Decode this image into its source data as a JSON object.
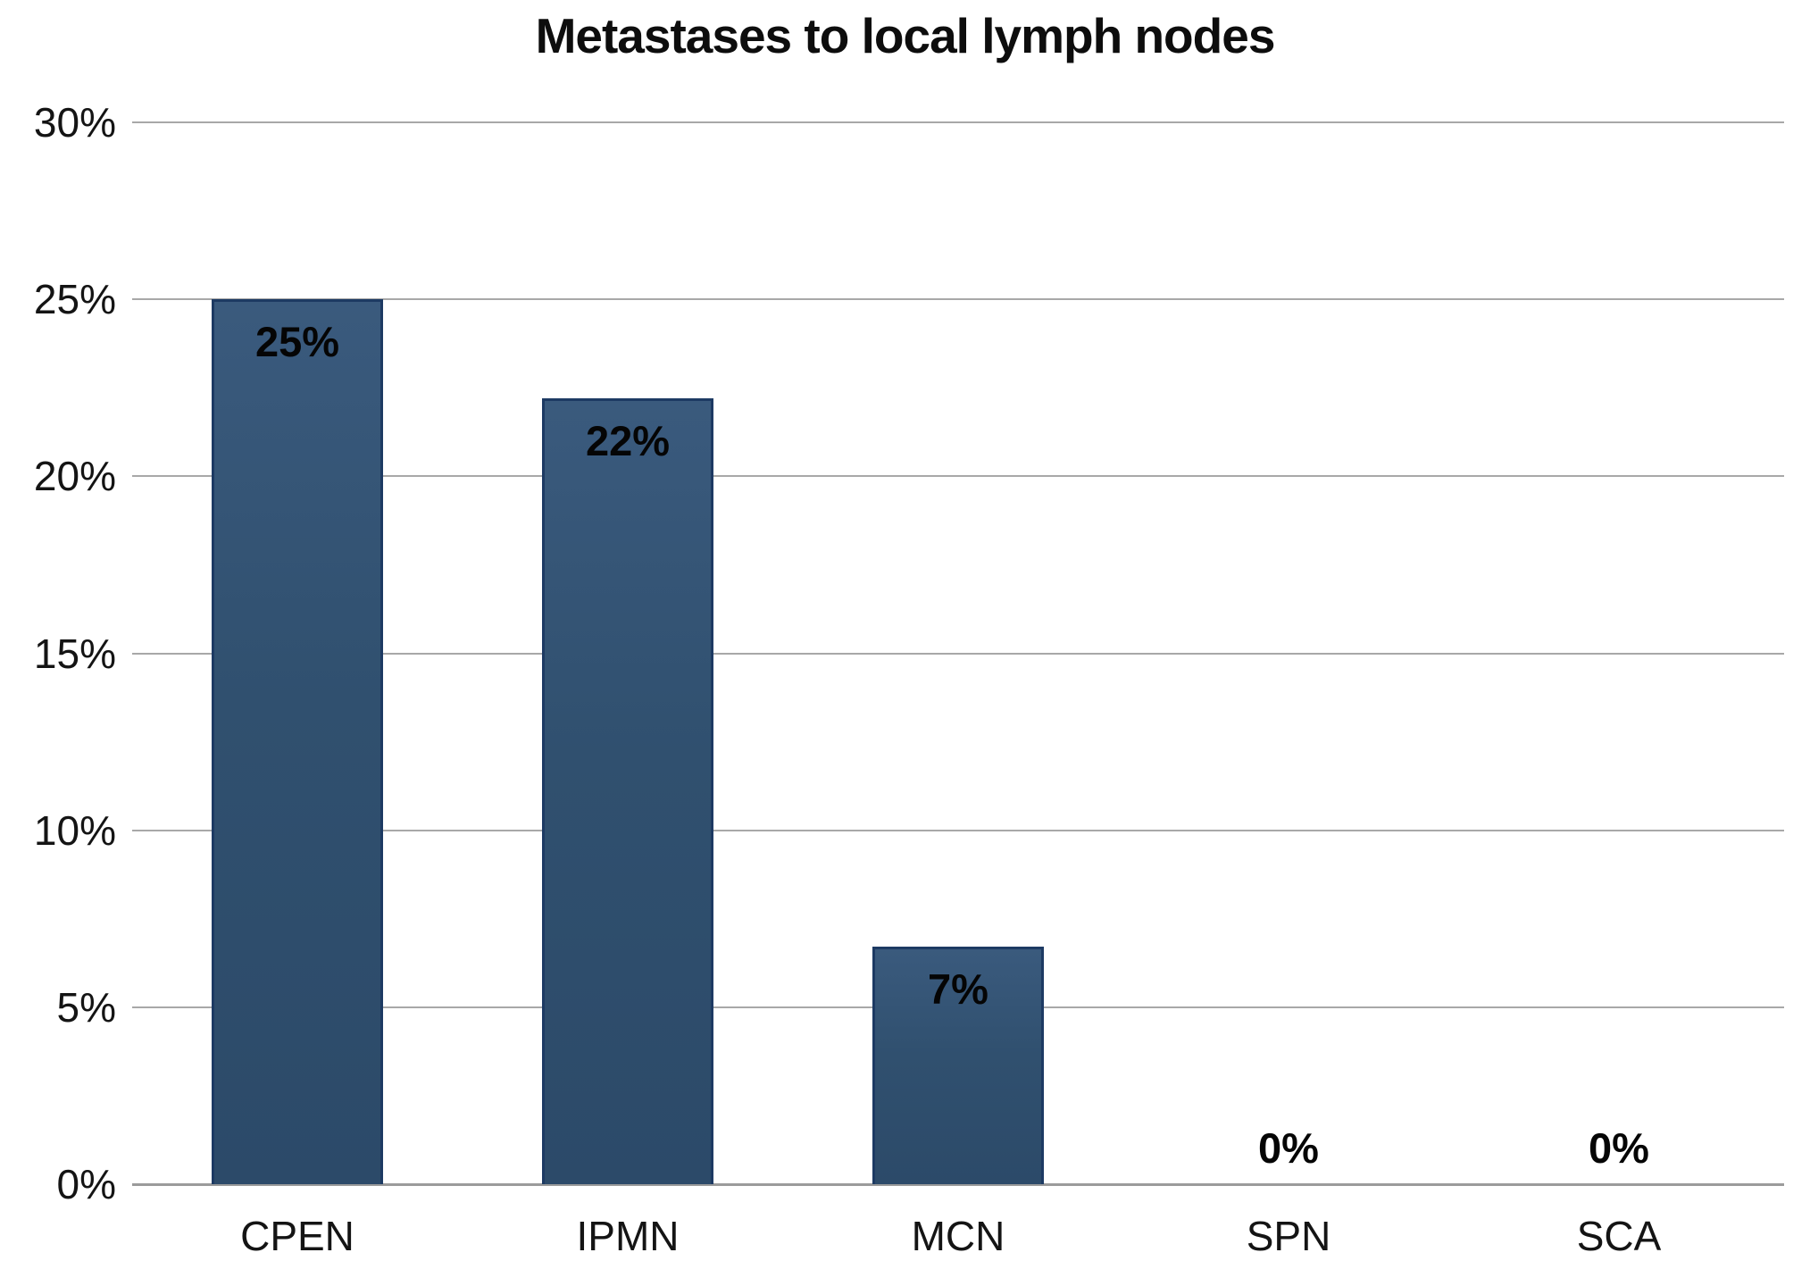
{
  "chart_data": {
    "type": "bar",
    "title": "Metastases to local lymph nodes",
    "categories": [
      "CPEN",
      "IPMN",
      "MCN",
      "SPN",
      "SCA"
    ],
    "values": [
      25,
      22.2,
      6.7,
      0,
      0
    ],
    "data_labels": [
      "25%",
      "22%",
      "7%",
      "0%",
      "0%"
    ],
    "xlabel": "",
    "ylabel": "",
    "ylim": [
      0,
      30
    ],
    "ytick_step": 5,
    "ytick_labels": [
      "0%",
      "5%",
      "10%",
      "15%",
      "20%",
      "25%",
      "30%"
    ],
    "grid": "horizontal",
    "legend": "none",
    "colors": {
      "bar_fill": "#30506f",
      "bar_border": "#1d3a63",
      "gridline": "#a8a8a8",
      "text": "#000000",
      "background": "#ffffff"
    }
  }
}
